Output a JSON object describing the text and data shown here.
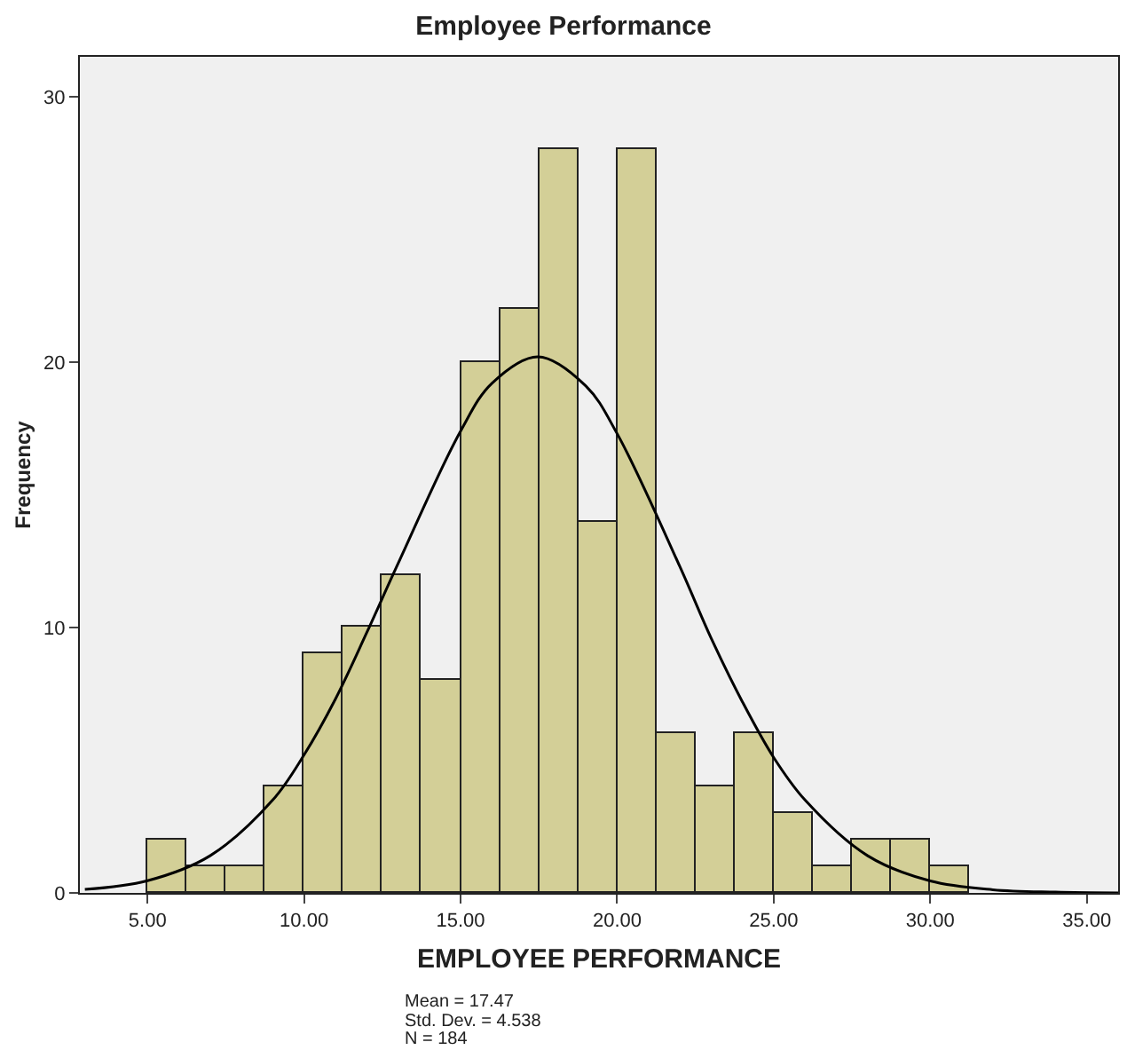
{
  "chart_data": {
    "type": "histogram",
    "title": "Employee Performance",
    "xlabel": "EMPLOYEE PERFORMANCE",
    "ylabel": "Frequency",
    "bins": [
      5,
      6.25,
      7.5,
      8.75,
      10,
      11.25,
      12.5,
      13.75,
      15,
      16.25,
      17.5,
      18.75,
      20,
      21.25,
      22.5,
      23.75,
      25,
      26.25,
      27.5,
      28.75,
      30,
      31.25
    ],
    "values": [
      2,
      1,
      1,
      4,
      9,
      10,
      12,
      8,
      20,
      22,
      28,
      14,
      28,
      6,
      4,
      6,
      3,
      1,
      2,
      2,
      1
    ],
    "color": "#d3cf97",
    "series": [
      {
        "type": "line",
        "color": "#000000",
        "x": [
          3,
          5,
          7,
          9,
          10,
          11,
          12,
          13,
          15,
          16,
          17.47,
          19,
          20,
          22,
          23,
          24,
          25,
          26,
          28,
          30,
          32,
          34,
          36
        ],
        "values": [
          0.13,
          0.46,
          1.4,
          3.5,
          5.2,
          7.3,
          9.8,
          12.4,
          17.4,
          19.2,
          20.2,
          19.1,
          17.3,
          12.3,
          9.6,
          7.2,
          5.1,
          3.5,
          1.4,
          0.45,
          0.12,
          0.03,
          0.0
        ]
      }
    ],
    "xlim": [
      2.84,
      36.0
    ],
    "ylim": [
      0,
      31.5
    ],
    "xticks": [
      {
        "value": 5,
        "label": "5.00"
      },
      {
        "value": 10,
        "label": "10.00"
      },
      {
        "value": 15,
        "label": "15.00"
      },
      {
        "value": 20,
        "label": "20.00"
      },
      {
        "value": 25,
        "label": "25.00"
      },
      {
        "value": 30,
        "label": "30.00"
      },
      {
        "value": 35,
        "label": "35.00"
      }
    ],
    "yticks": [
      0,
      10,
      20,
      30
    ],
    "annotations": [
      "Mean = 17.47",
      "Std. Dev. = 4.538",
      "N = 184"
    ]
  }
}
